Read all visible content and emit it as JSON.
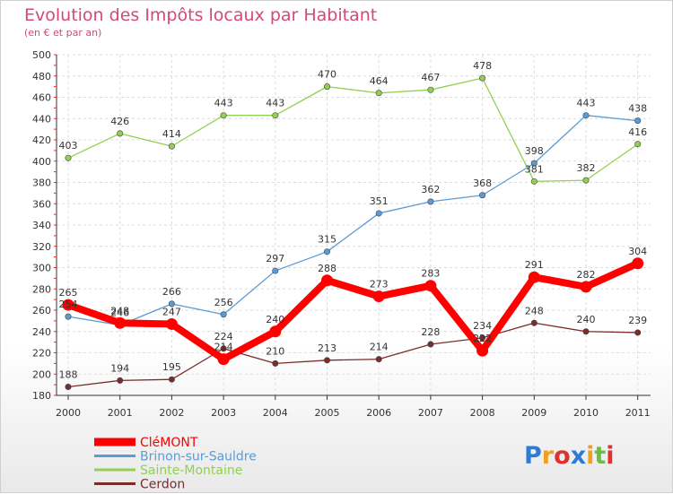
{
  "chart_data": {
    "type": "line",
    "title": "Evolution des Impôts locaux par Habitant",
    "subtitle": "(en € et par an)",
    "categories": [
      "2000",
      "2001",
      "2002",
      "2003",
      "2004",
      "2005",
      "2006",
      "2007",
      "2008",
      "2009",
      "2010",
      "2011"
    ],
    "ylim": [
      180,
      500
    ],
    "yticks": [
      180,
      200,
      220,
      240,
      260,
      280,
      300,
      320,
      340,
      360,
      380,
      400,
      420,
      440,
      460,
      480,
      500
    ],
    "grid": true,
    "legend_position": "bottom-left",
    "series": [
      {
        "name": "CléMONT",
        "color": "#ff0000",
        "values": [
          265,
          248,
          247,
          214,
          240,
          288,
          273,
          283,
          222,
          291,
          282,
          304
        ]
      },
      {
        "name": "Brinon-sur-Sauldre",
        "color": "#5b9bd5",
        "values": [
          254,
          246,
          266,
          256,
          297,
          315,
          351,
          362,
          368,
          398,
          443,
          438
        ]
      },
      {
        "name": "Sainte-Montaine",
        "color": "#92d050",
        "values": [
          403,
          426,
          414,
          443,
          443,
          470,
          464,
          467,
          478,
          381,
          382,
          416
        ]
      },
      {
        "name": "Cerdon",
        "color": "#7b2c2c",
        "values": [
          188,
          194,
          195,
          224,
          210,
          213,
          214,
          228,
          234,
          248,
          240,
          239
        ]
      }
    ]
  },
  "logo": {
    "text": "Proxiti",
    "letters": [
      "P",
      "r",
      "o",
      "x",
      "i",
      "t",
      "i"
    ],
    "colors": [
      "#2e7bd6",
      "#f0a020",
      "#e03030",
      "#2e7bd6",
      "#f0a020",
      "#6bbf40",
      "#e03030"
    ]
  }
}
